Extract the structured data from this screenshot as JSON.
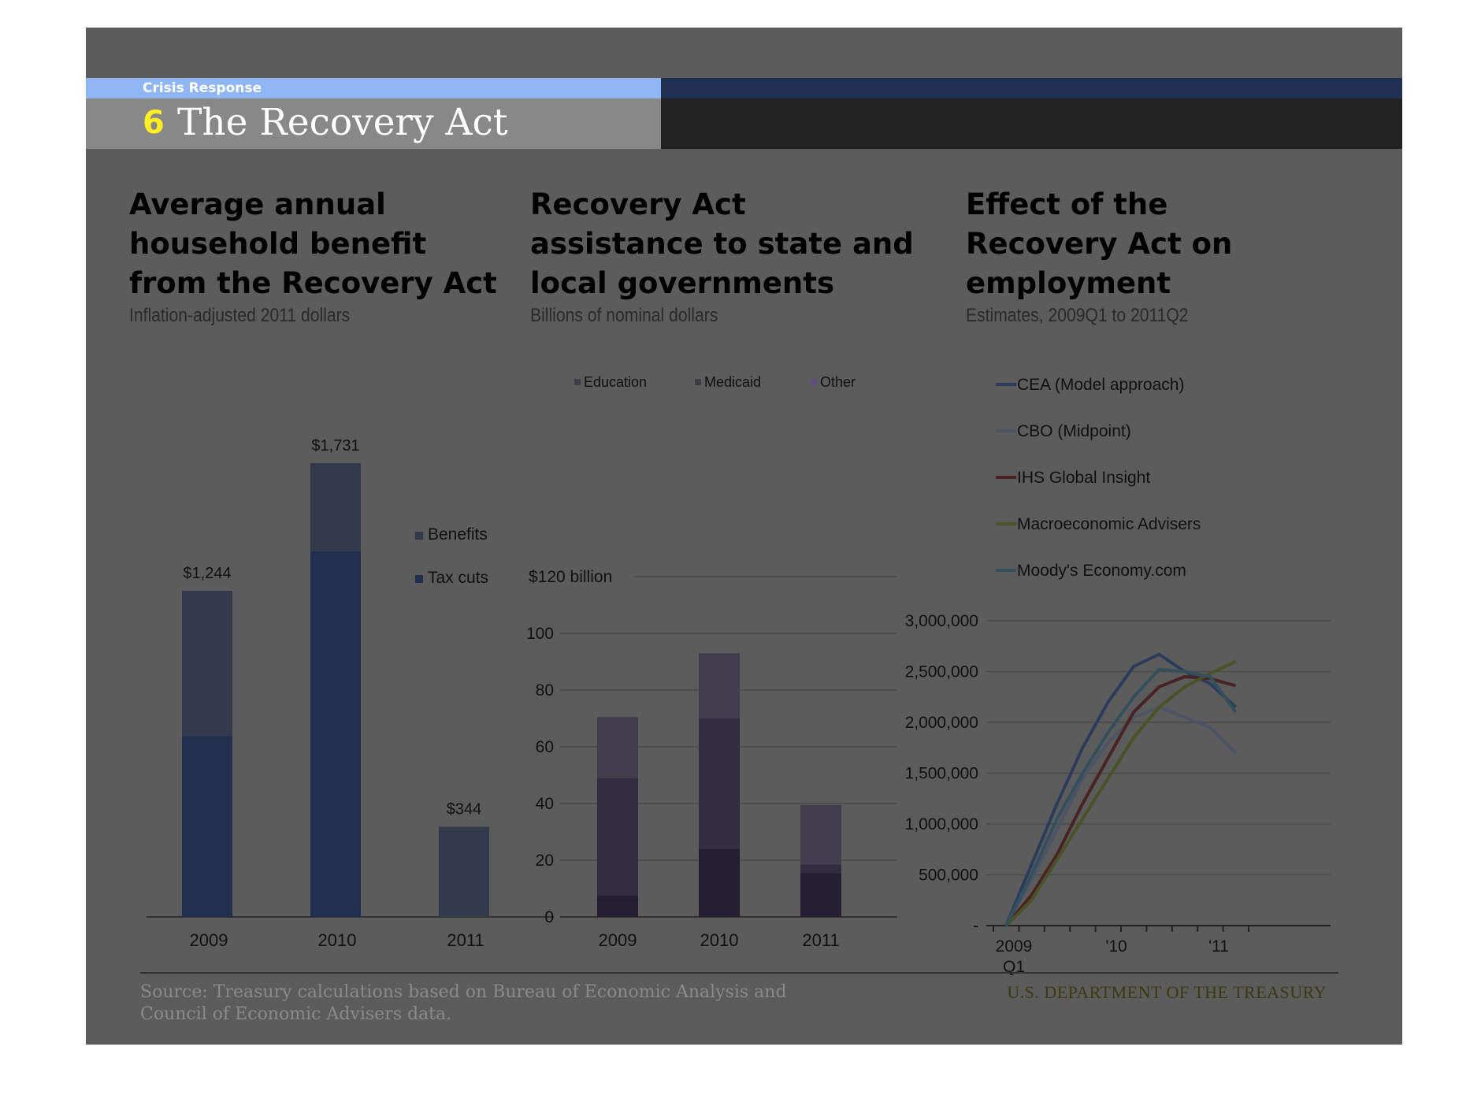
{
  "header": {
    "section_label": "Crisis Response",
    "page_number": "6",
    "page_title": "The Recovery Act",
    "accent_color": "#8fb6f2",
    "number_color": "#ffee22"
  },
  "footer": {
    "source": "Source: Treasury calculations based on Bureau of Economic Analysis and Council of Economic Advisers data.",
    "department": "U.S. DEPARTMENT OF THE TREASURY"
  },
  "charts": {
    "household": {
      "title": "Average annual household benefit from the Recovery Act",
      "subtitle": "Inflation-adjusted 2011 dollars"
    },
    "state": {
      "title": "Recovery Act assistance to state and local governments",
      "subtitle": "Billions of nominal dollars"
    },
    "employment": {
      "title": "Effect of the Recovery Act on employment",
      "subtitle": "Estimates, 2009Q1 to 2011Q2"
    }
  },
  "chart_data": [
    {
      "type": "bar",
      "stacked": true,
      "title": "Average annual household benefit from the Recovery Act",
      "subtitle": "Inflation-adjusted 2011 dollars",
      "categories": [
        "2009",
        "2010",
        "2011"
      ],
      "series": [
        {
          "name": "Tax cuts",
          "values": [
            690,
            1395,
            0
          ],
          "color": "#22304f"
        },
        {
          "name": "Benefits",
          "values": [
            554,
            336,
            344
          ],
          "color": "#333a4b"
        }
      ],
      "totals": [
        "$1,244",
        "$1,731",
        "$344"
      ],
      "ylim": [
        0,
        1800
      ],
      "legend": "right"
    },
    {
      "type": "bar",
      "stacked": true,
      "title": "Recovery Act assistance to state and local governments",
      "subtitle": "Billions of nominal dollars",
      "categories": [
        "2009",
        "2010",
        "2011"
      ],
      "series": [
        {
          "name": "Education",
          "values": [
            7.5,
            24,
            15.5
          ],
          "color": "#231e31"
        },
        {
          "name": "Medicaid",
          "values": [
            41.5,
            46,
            3
          ],
          "color": "#332d41"
        },
        {
          "name": "Other",
          "values": [
            21.5,
            23,
            21
          ],
          "color": "#433e4e"
        }
      ],
      "yticks": [
        "0",
        "20",
        "40",
        "60",
        "80",
        "100",
        "$120 billion"
      ],
      "ylim": [
        0,
        120
      ],
      "grid": true,
      "legend": "top"
    },
    {
      "type": "line",
      "title": "Effect of the Recovery Act on employment",
      "subtitle": "Estimates, 2009Q1 to 2011Q2",
      "x": [
        "2009Q1",
        "2009Q2",
        "2009Q3",
        "2009Q4",
        "2010Q1",
        "2010Q2",
        "2010Q3",
        "2010Q4",
        "2011Q1",
        "2011Q2"
      ],
      "xtick_labels": [
        "2009",
        "Q1",
        "'10",
        "'11"
      ],
      "yticks": [
        "-",
        "500,000",
        "1,000,000",
        "1,500,000",
        "2,000,000",
        "2,500,000",
        "3,000,000"
      ],
      "ylim": [
        0,
        3000000
      ],
      "series": [
        {
          "name": "CEA (Model approach)",
          "color": "#2c3d5c",
          "values": [
            0,
            600000,
            1200000,
            1750000,
            2200000,
            2550000,
            2670000,
            2500000,
            2380000,
            2150000
          ]
        },
        {
          "name": "CBO (Midpoint)",
          "color": "#4d5466",
          "values": [
            0,
            450000,
            950000,
            1450000,
            1800000,
            2050000,
            2150000,
            2050000,
            1950000,
            1700000
          ]
        },
        {
          "name": "IHS Global Insight",
          "color": "#4a2424",
          "values": [
            0,
            300000,
            700000,
            1200000,
            1650000,
            2100000,
            2350000,
            2450000,
            2430000,
            2360000
          ]
        },
        {
          "name": "Macroeconomic Advisers",
          "color": "#4b5226",
          "values": [
            0,
            250000,
            650000,
            1050000,
            1450000,
            1850000,
            2150000,
            2350000,
            2480000,
            2600000
          ]
        },
        {
          "name": "Moody's Economy.com",
          "color": "#34505c",
          "values": [
            0,
            500000,
            1050000,
            1500000,
            1900000,
            2250000,
            2520000,
            2500000,
            2450000,
            2100000
          ]
        }
      ],
      "legend": "top"
    }
  ]
}
